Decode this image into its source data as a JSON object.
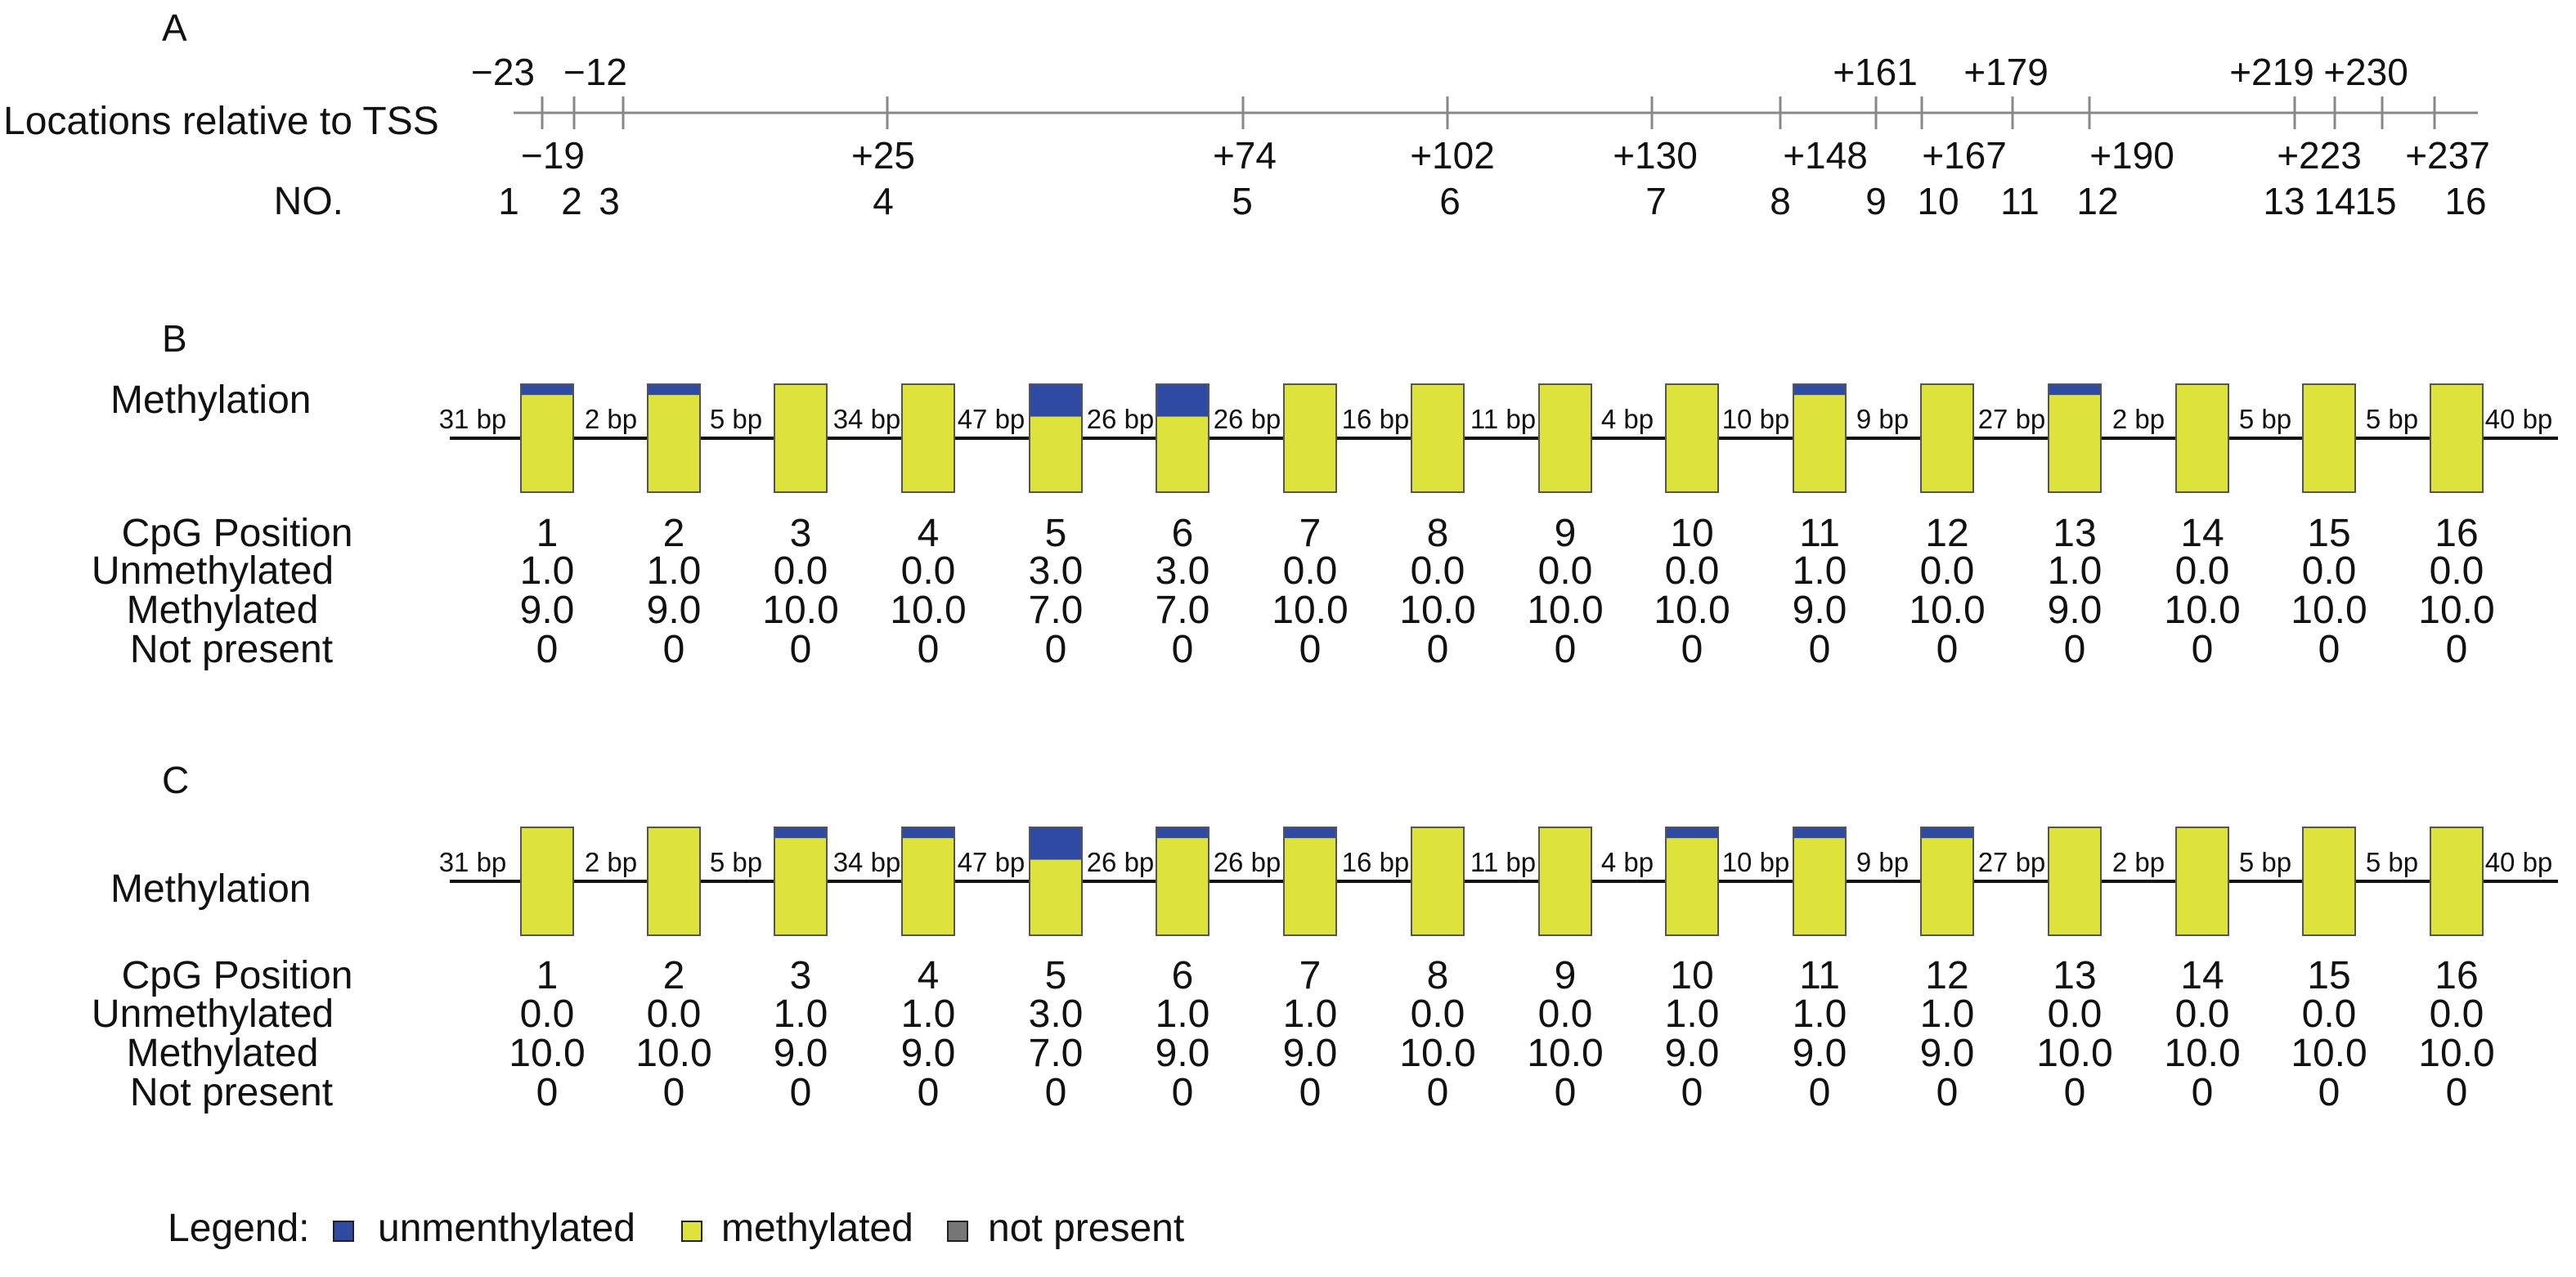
{
  "panel_a": {
    "letter": "A",
    "axis_label": "Locations relative to TSS",
    "no_label": "NO.",
    "top_locations": [
      "−23",
      "−12",
      "+161",
      "+179",
      "+219",
      "+230"
    ],
    "bottom_locations": [
      "−19",
      "+25",
      "+74",
      "+102",
      "+130",
      "+148",
      "+167",
      "+190",
      "+223",
      "+237"
    ],
    "numbers": [
      "1",
      "2",
      "3",
      "4",
      "5",
      "6",
      "7",
      "8",
      "9",
      "10",
      "11",
      "12",
      "13",
      "14",
      "15",
      "16"
    ]
  },
  "panel_b": {
    "letter": "B",
    "methylation_label": "Methylation",
    "gaps": [
      "31 bp",
      "2 bp",
      "5 bp",
      "34 bp",
      "47 bp",
      "26 bp",
      "26 bp",
      "16 bp",
      "11 bp",
      "4 bp",
      "10 bp",
      "9 bp",
      "27 bp",
      "2 bp",
      "5 bp",
      "5 bp",
      "40 bp"
    ],
    "row_labels": [
      "CpG Position",
      "Unmethylated",
      "Methylated",
      "Not present"
    ],
    "positions": [
      "1",
      "2",
      "3",
      "4",
      "5",
      "6",
      "7",
      "8",
      "9",
      "10",
      "11",
      "12",
      "13",
      "14",
      "15",
      "16"
    ],
    "unmethylated": [
      "1.0",
      "1.0",
      "0.0",
      "0.0",
      "3.0",
      "3.0",
      "0.0",
      "0.0",
      "0.0",
      "0.0",
      "1.0",
      "0.0",
      "1.0",
      "0.0",
      "0.0",
      "0.0"
    ],
    "methylated": [
      "9.0",
      "9.0",
      "10.0",
      "10.0",
      "7.0",
      "7.0",
      "10.0",
      "10.0",
      "10.0",
      "10.0",
      "9.0",
      "10.0",
      "9.0",
      "10.0",
      "10.0",
      "10.0"
    ],
    "not_present": [
      "0",
      "0",
      "0",
      "0",
      "0",
      "0",
      "0",
      "0",
      "0",
      "0",
      "0",
      "0",
      "0",
      "0",
      "0",
      "0"
    ]
  },
  "panel_c": {
    "letter": "C",
    "methylation_label": "Methylation",
    "gaps": [
      "31 bp",
      "2 bp",
      "5 bp",
      "34 bp",
      "47 bp",
      "26 bp",
      "26 bp",
      "16 bp",
      "11 bp",
      "4 bp",
      "10 bp",
      "9 bp",
      "27 bp",
      "2 bp",
      "5 bp",
      "5 bp",
      "40 bp"
    ],
    "row_labels": [
      "CpG Position",
      "Unmethylated",
      "Methylated",
      "Not present"
    ],
    "positions": [
      "1",
      "2",
      "3",
      "4",
      "5",
      "6",
      "7",
      "8",
      "9",
      "10",
      "11",
      "12",
      "13",
      "14",
      "15",
      "16"
    ],
    "unmethylated": [
      "0.0",
      "0.0",
      "1.0",
      "1.0",
      "3.0",
      "1.0",
      "1.0",
      "0.0",
      "0.0",
      "1.0",
      "1.0",
      "1.0",
      "0.0",
      "0.0",
      "0.0",
      "0.0"
    ],
    "methylated": [
      "10.0",
      "10.0",
      "9.0",
      "9.0",
      "7.0",
      "9.0",
      "9.0",
      "10.0",
      "10.0",
      "9.0",
      "9.0",
      "9.0",
      "10.0",
      "10.0",
      "10.0",
      "10.0"
    ],
    "not_present": [
      "0",
      "0",
      "0",
      "0",
      "0",
      "0",
      "0",
      "0",
      "0",
      "0",
      "0",
      "0",
      "0",
      "0",
      "0",
      "0"
    ]
  },
  "legend": {
    "title": "Legend:",
    "items": [
      {
        "label": "unmenthylated",
        "color": "#2e4aa3"
      },
      {
        "label": "methylated",
        "color": "#dde33a"
      },
      {
        "label": "not present",
        "color": "#777777"
      }
    ]
  }
}
